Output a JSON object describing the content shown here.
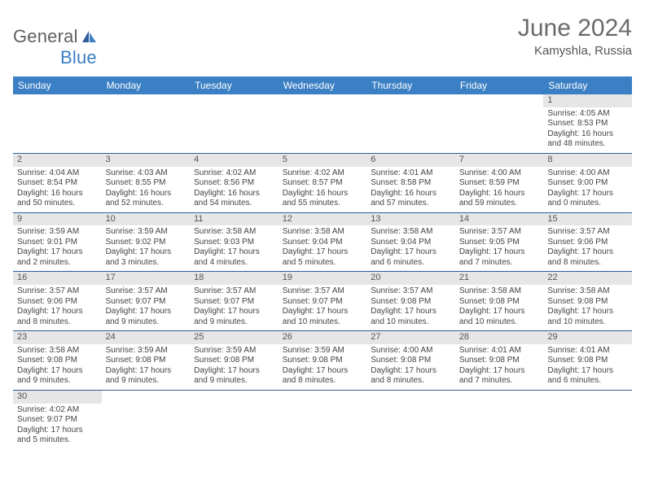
{
  "logo": {
    "text1": "General",
    "text2": "Blue"
  },
  "title": "June 2024",
  "location": "Kamyshla, Russia",
  "colors": {
    "header_bg": "#3b7fc4",
    "rule": "#2f5b9a",
    "daystrip": "#e6e6e6",
    "blank": "#f0f0f0",
    "text": "#444"
  },
  "weekdays": [
    "Sunday",
    "Monday",
    "Tuesday",
    "Wednesday",
    "Thursday",
    "Friday",
    "Saturday"
  ],
  "leading_blanks": 6,
  "days": [
    {
      "n": 1,
      "sr": "4:05 AM",
      "ss": "8:53 PM",
      "dl": "16 hours and 48 minutes."
    },
    {
      "n": 2,
      "sr": "4:04 AM",
      "ss": "8:54 PM",
      "dl": "16 hours and 50 minutes."
    },
    {
      "n": 3,
      "sr": "4:03 AM",
      "ss": "8:55 PM",
      "dl": "16 hours and 52 minutes."
    },
    {
      "n": 4,
      "sr": "4:02 AM",
      "ss": "8:56 PM",
      "dl": "16 hours and 54 minutes."
    },
    {
      "n": 5,
      "sr": "4:02 AM",
      "ss": "8:57 PM",
      "dl": "16 hours and 55 minutes."
    },
    {
      "n": 6,
      "sr": "4:01 AM",
      "ss": "8:58 PM",
      "dl": "16 hours and 57 minutes."
    },
    {
      "n": 7,
      "sr": "4:00 AM",
      "ss": "8:59 PM",
      "dl": "16 hours and 59 minutes."
    },
    {
      "n": 8,
      "sr": "4:00 AM",
      "ss": "9:00 PM",
      "dl": "17 hours and 0 minutes."
    },
    {
      "n": 9,
      "sr": "3:59 AM",
      "ss": "9:01 PM",
      "dl": "17 hours and 2 minutes."
    },
    {
      "n": 10,
      "sr": "3:59 AM",
      "ss": "9:02 PM",
      "dl": "17 hours and 3 minutes."
    },
    {
      "n": 11,
      "sr": "3:58 AM",
      "ss": "9:03 PM",
      "dl": "17 hours and 4 minutes."
    },
    {
      "n": 12,
      "sr": "3:58 AM",
      "ss": "9:04 PM",
      "dl": "17 hours and 5 minutes."
    },
    {
      "n": 13,
      "sr": "3:58 AM",
      "ss": "9:04 PM",
      "dl": "17 hours and 6 minutes."
    },
    {
      "n": 14,
      "sr": "3:57 AM",
      "ss": "9:05 PM",
      "dl": "17 hours and 7 minutes."
    },
    {
      "n": 15,
      "sr": "3:57 AM",
      "ss": "9:06 PM",
      "dl": "17 hours and 8 minutes."
    },
    {
      "n": 16,
      "sr": "3:57 AM",
      "ss": "9:06 PM",
      "dl": "17 hours and 8 minutes."
    },
    {
      "n": 17,
      "sr": "3:57 AM",
      "ss": "9:07 PM",
      "dl": "17 hours and 9 minutes."
    },
    {
      "n": 18,
      "sr": "3:57 AM",
      "ss": "9:07 PM",
      "dl": "17 hours and 9 minutes."
    },
    {
      "n": 19,
      "sr": "3:57 AM",
      "ss": "9:07 PM",
      "dl": "17 hours and 10 minutes."
    },
    {
      "n": 20,
      "sr": "3:57 AM",
      "ss": "9:08 PM",
      "dl": "17 hours and 10 minutes."
    },
    {
      "n": 21,
      "sr": "3:58 AM",
      "ss": "9:08 PM",
      "dl": "17 hours and 10 minutes."
    },
    {
      "n": 22,
      "sr": "3:58 AM",
      "ss": "9:08 PM",
      "dl": "17 hours and 10 minutes."
    },
    {
      "n": 23,
      "sr": "3:58 AM",
      "ss": "9:08 PM",
      "dl": "17 hours and 9 minutes."
    },
    {
      "n": 24,
      "sr": "3:59 AM",
      "ss": "9:08 PM",
      "dl": "17 hours and 9 minutes."
    },
    {
      "n": 25,
      "sr": "3:59 AM",
      "ss": "9:08 PM",
      "dl": "17 hours and 9 minutes."
    },
    {
      "n": 26,
      "sr": "3:59 AM",
      "ss": "9:08 PM",
      "dl": "17 hours and 8 minutes."
    },
    {
      "n": 27,
      "sr": "4:00 AM",
      "ss": "9:08 PM",
      "dl": "17 hours and 8 minutes."
    },
    {
      "n": 28,
      "sr": "4:01 AM",
      "ss": "9:08 PM",
      "dl": "17 hours and 7 minutes."
    },
    {
      "n": 29,
      "sr": "4:01 AM",
      "ss": "9:08 PM",
      "dl": "17 hours and 6 minutes."
    },
    {
      "n": 30,
      "sr": "4:02 AM",
      "ss": "9:07 PM",
      "dl": "17 hours and 5 minutes."
    }
  ],
  "labels": {
    "sunrise": "Sunrise: ",
    "sunset": "Sunset: ",
    "daylight": "Daylight: "
  }
}
